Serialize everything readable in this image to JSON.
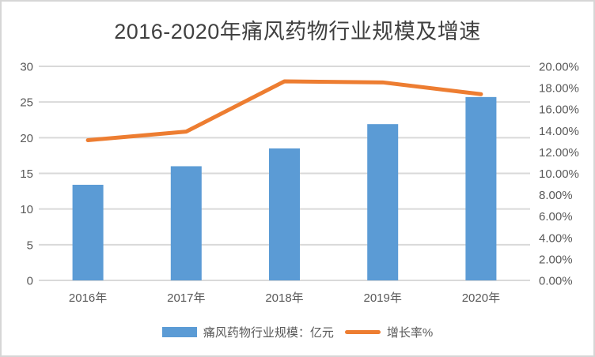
{
  "chart_data": {
    "type": "combo",
    "title": "2016-2020年痛风药物行业规模及增速",
    "categories": [
      "2016年",
      "2017年",
      "2018年",
      "2019年",
      "2020年"
    ],
    "series": [
      {
        "name": "痛风药物行业规模：亿元",
        "type": "bar",
        "axis": "left",
        "values": [
          13.4,
          16.0,
          18.5,
          21.9,
          25.7
        ]
      },
      {
        "name": "增长率%",
        "type": "line",
        "axis": "right",
        "values": [
          13.1,
          13.9,
          18.6,
          18.5,
          17.4
        ]
      }
    ],
    "left_axis": {
      "min": 0,
      "max": 30,
      "step": 5,
      "ticks": [
        "0",
        "5",
        "10",
        "15",
        "20",
        "25",
        "30"
      ]
    },
    "right_axis": {
      "min": 0,
      "max": 20,
      "step": 2,
      "ticks": [
        "0.00%",
        "2.00%",
        "4.00%",
        "6.00%",
        "8.00%",
        "10.00%",
        "12.00%",
        "14.00%",
        "16.00%",
        "18.00%",
        "20.00%"
      ]
    },
    "grid": true,
    "legend_position": "bottom"
  },
  "colors": {
    "bar": "#5B9BD5",
    "line": "#ED7D31",
    "gridline": "#D9D9D9",
    "axis_text": "#595959",
    "title_text": "#404040",
    "border": "#D6D6D6",
    "background": "#FFFFFF"
  }
}
